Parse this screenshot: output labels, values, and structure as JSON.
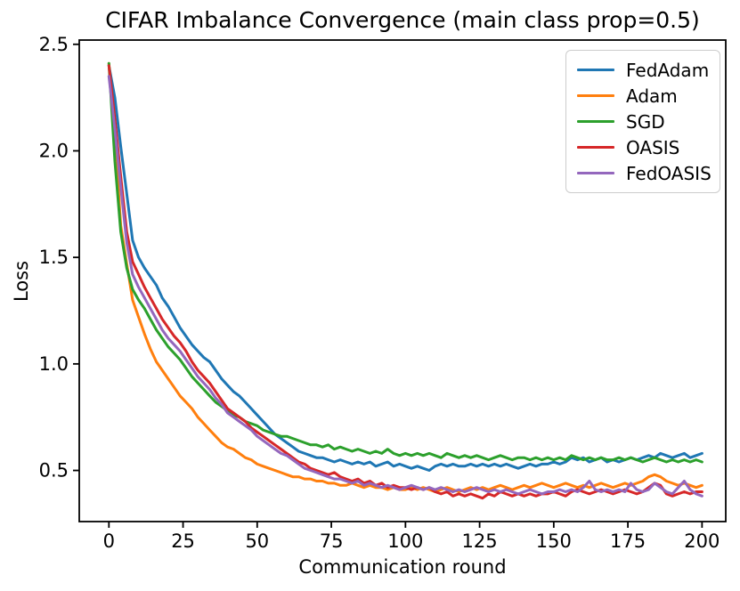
{
  "chart_data": {
    "type": "line",
    "title": "CIFAR Imbalance Convergence (main class prop=0.5)",
    "xlabel": "Communication round",
    "ylabel": "Loss",
    "xlim": [
      -10,
      208
    ],
    "ylim": [
      0.26,
      2.52
    ],
    "grid": false,
    "legend_position": "upper right",
    "x_ticks": [
      0,
      25,
      50,
      75,
      100,
      125,
      150,
      175,
      200
    ],
    "x_tick_labels": [
      "0",
      "25",
      "50",
      "75",
      "100",
      "125",
      "150",
      "175",
      "200"
    ],
    "y_ticks": [
      0.5,
      1.0,
      1.5,
      2.0,
      2.5
    ],
    "y_tick_labels": [
      "0.5",
      "1.0",
      "1.5",
      "2.0",
      "2.5"
    ],
    "x": [
      0,
      2,
      4,
      6,
      8,
      10,
      12,
      14,
      16,
      18,
      20,
      22,
      24,
      26,
      28,
      30,
      32,
      34,
      36,
      38,
      40,
      42,
      44,
      46,
      48,
      50,
      52,
      54,
      56,
      58,
      60,
      62,
      64,
      66,
      68,
      70,
      72,
      74,
      76,
      78,
      80,
      82,
      84,
      86,
      88,
      90,
      92,
      94,
      96,
      98,
      100,
      102,
      104,
      106,
      108,
      110,
      112,
      114,
      116,
      118,
      120,
      122,
      124,
      126,
      128,
      130,
      132,
      134,
      136,
      138,
      140,
      142,
      144,
      146,
      148,
      150,
      152,
      154,
      156,
      158,
      160,
      162,
      164,
      166,
      168,
      170,
      172,
      174,
      176,
      178,
      180,
      182,
      184,
      186,
      188,
      190,
      192,
      194,
      196,
      198,
      200
    ],
    "series": [
      {
        "name": "FedAdam",
        "color": "#1f77b4",
        "values": [
          2.4,
          2.25,
          2.02,
          1.8,
          1.58,
          1.5,
          1.45,
          1.41,
          1.37,
          1.31,
          1.27,
          1.22,
          1.17,
          1.13,
          1.09,
          1.06,
          1.03,
          1.01,
          0.97,
          0.93,
          0.9,
          0.87,
          0.85,
          0.82,
          0.79,
          0.76,
          0.73,
          0.7,
          0.67,
          0.65,
          0.63,
          0.61,
          0.59,
          0.58,
          0.57,
          0.56,
          0.56,
          0.55,
          0.54,
          0.55,
          0.54,
          0.53,
          0.54,
          0.53,
          0.54,
          0.52,
          0.53,
          0.54,
          0.52,
          0.53,
          0.52,
          0.51,
          0.52,
          0.51,
          0.5,
          0.52,
          0.53,
          0.52,
          0.53,
          0.52,
          0.52,
          0.53,
          0.52,
          0.53,
          0.52,
          0.53,
          0.52,
          0.53,
          0.52,
          0.51,
          0.52,
          0.53,
          0.52,
          0.53,
          0.53,
          0.54,
          0.53,
          0.54,
          0.56,
          0.55,
          0.56,
          0.54,
          0.55,
          0.56,
          0.54,
          0.55,
          0.54,
          0.55,
          0.56,
          0.55,
          0.56,
          0.57,
          0.56,
          0.58,
          0.57,
          0.56,
          0.57,
          0.58,
          0.56,
          0.57,
          0.58
        ]
      },
      {
        "name": "Adam",
        "color": "#ff7f0e",
        "values": [
          2.41,
          2.08,
          1.65,
          1.47,
          1.3,
          1.22,
          1.14,
          1.07,
          1.01,
          0.97,
          0.93,
          0.89,
          0.85,
          0.82,
          0.79,
          0.75,
          0.72,
          0.69,
          0.66,
          0.63,
          0.61,
          0.6,
          0.58,
          0.56,
          0.55,
          0.53,
          0.52,
          0.51,
          0.5,
          0.49,
          0.48,
          0.47,
          0.47,
          0.46,
          0.46,
          0.45,
          0.45,
          0.44,
          0.44,
          0.43,
          0.43,
          0.44,
          0.43,
          0.42,
          0.43,
          0.42,
          0.42,
          0.41,
          0.42,
          0.41,
          0.41,
          0.42,
          0.41,
          0.42,
          0.41,
          0.4,
          0.41,
          0.42,
          0.41,
          0.4,
          0.41,
          0.42,
          0.41,
          0.42,
          0.41,
          0.42,
          0.43,
          0.42,
          0.41,
          0.42,
          0.43,
          0.42,
          0.43,
          0.44,
          0.43,
          0.42,
          0.43,
          0.44,
          0.43,
          0.42,
          0.43,
          0.42,
          0.43,
          0.44,
          0.43,
          0.42,
          0.43,
          0.44,
          0.43,
          0.44,
          0.45,
          0.47,
          0.48,
          0.47,
          0.45,
          0.44,
          0.43,
          0.44,
          0.43,
          0.42,
          0.43
        ]
      },
      {
        "name": "SGD",
        "color": "#2ca02c",
        "values": [
          2.41,
          1.95,
          1.62,
          1.45,
          1.35,
          1.3,
          1.26,
          1.21,
          1.16,
          1.12,
          1.08,
          1.05,
          1.02,
          0.98,
          0.94,
          0.91,
          0.88,
          0.85,
          0.82,
          0.8,
          0.78,
          0.76,
          0.75,
          0.73,
          0.72,
          0.71,
          0.69,
          0.68,
          0.67,
          0.66,
          0.66,
          0.65,
          0.64,
          0.63,
          0.62,
          0.62,
          0.61,
          0.62,
          0.6,
          0.61,
          0.6,
          0.59,
          0.6,
          0.59,
          0.58,
          0.59,
          0.58,
          0.6,
          0.58,
          0.57,
          0.58,
          0.57,
          0.58,
          0.57,
          0.58,
          0.57,
          0.56,
          0.58,
          0.57,
          0.56,
          0.57,
          0.56,
          0.57,
          0.56,
          0.55,
          0.56,
          0.57,
          0.56,
          0.55,
          0.56,
          0.56,
          0.55,
          0.56,
          0.55,
          0.56,
          0.55,
          0.56,
          0.55,
          0.57,
          0.56,
          0.55,
          0.56,
          0.55,
          0.56,
          0.55,
          0.55,
          0.56,
          0.55,
          0.56,
          0.55,
          0.54,
          0.55,
          0.56,
          0.55,
          0.54,
          0.55,
          0.54,
          0.55,
          0.54,
          0.55,
          0.54
        ]
      },
      {
        "name": "OASIS",
        "color": "#d62728",
        "values": [
          2.4,
          2.15,
          1.88,
          1.62,
          1.48,
          1.42,
          1.36,
          1.31,
          1.26,
          1.21,
          1.17,
          1.13,
          1.1,
          1.06,
          1.01,
          0.97,
          0.94,
          0.91,
          0.87,
          0.83,
          0.79,
          0.77,
          0.75,
          0.73,
          0.7,
          0.68,
          0.66,
          0.64,
          0.62,
          0.6,
          0.58,
          0.56,
          0.54,
          0.53,
          0.51,
          0.5,
          0.49,
          0.48,
          0.49,
          0.47,
          0.46,
          0.45,
          0.46,
          0.44,
          0.45,
          0.43,
          0.44,
          0.42,
          0.43,
          0.42,
          0.42,
          0.41,
          0.42,
          0.41,
          0.42,
          0.4,
          0.39,
          0.4,
          0.38,
          0.39,
          0.38,
          0.39,
          0.38,
          0.37,
          0.39,
          0.38,
          0.4,
          0.39,
          0.38,
          0.39,
          0.38,
          0.39,
          0.38,
          0.39,
          0.39,
          0.4,
          0.39,
          0.38,
          0.4,
          0.41,
          0.4,
          0.39,
          0.4,
          0.41,
          0.4,
          0.39,
          0.4,
          0.41,
          0.4,
          0.39,
          0.4,
          0.42,
          0.44,
          0.43,
          0.39,
          0.38,
          0.39,
          0.4,
          0.39,
          0.4,
          0.4
        ]
      },
      {
        "name": "FedOASIS",
        "color": "#9467bd",
        "values": [
          2.35,
          2.1,
          1.83,
          1.57,
          1.42,
          1.36,
          1.31,
          1.26,
          1.21,
          1.16,
          1.12,
          1.09,
          1.06,
          1.02,
          0.98,
          0.94,
          0.91,
          0.88,
          0.84,
          0.81,
          0.77,
          0.75,
          0.73,
          0.71,
          0.69,
          0.66,
          0.64,
          0.62,
          0.6,
          0.58,
          0.57,
          0.55,
          0.53,
          0.51,
          0.5,
          0.49,
          0.48,
          0.47,
          0.46,
          0.46,
          0.45,
          0.44,
          0.45,
          0.43,
          0.44,
          0.43,
          0.42,
          0.43,
          0.42,
          0.41,
          0.42,
          0.43,
          0.42,
          0.41,
          0.42,
          0.41,
          0.42,
          0.41,
          0.4,
          0.41,
          0.4,
          0.41,
          0.42,
          0.41,
          0.4,
          0.41,
          0.4,
          0.41,
          0.4,
          0.39,
          0.4,
          0.41,
          0.4,
          0.39,
          0.4,
          0.4,
          0.41,
          0.4,
          0.41,
          0.4,
          0.42,
          0.45,
          0.41,
          0.4,
          0.41,
          0.4,
          0.41,
          0.4,
          0.44,
          0.41,
          0.4,
          0.41,
          0.44,
          0.42,
          0.4,
          0.39,
          0.42,
          0.45,
          0.41,
          0.39,
          0.38
        ]
      }
    ]
  }
}
